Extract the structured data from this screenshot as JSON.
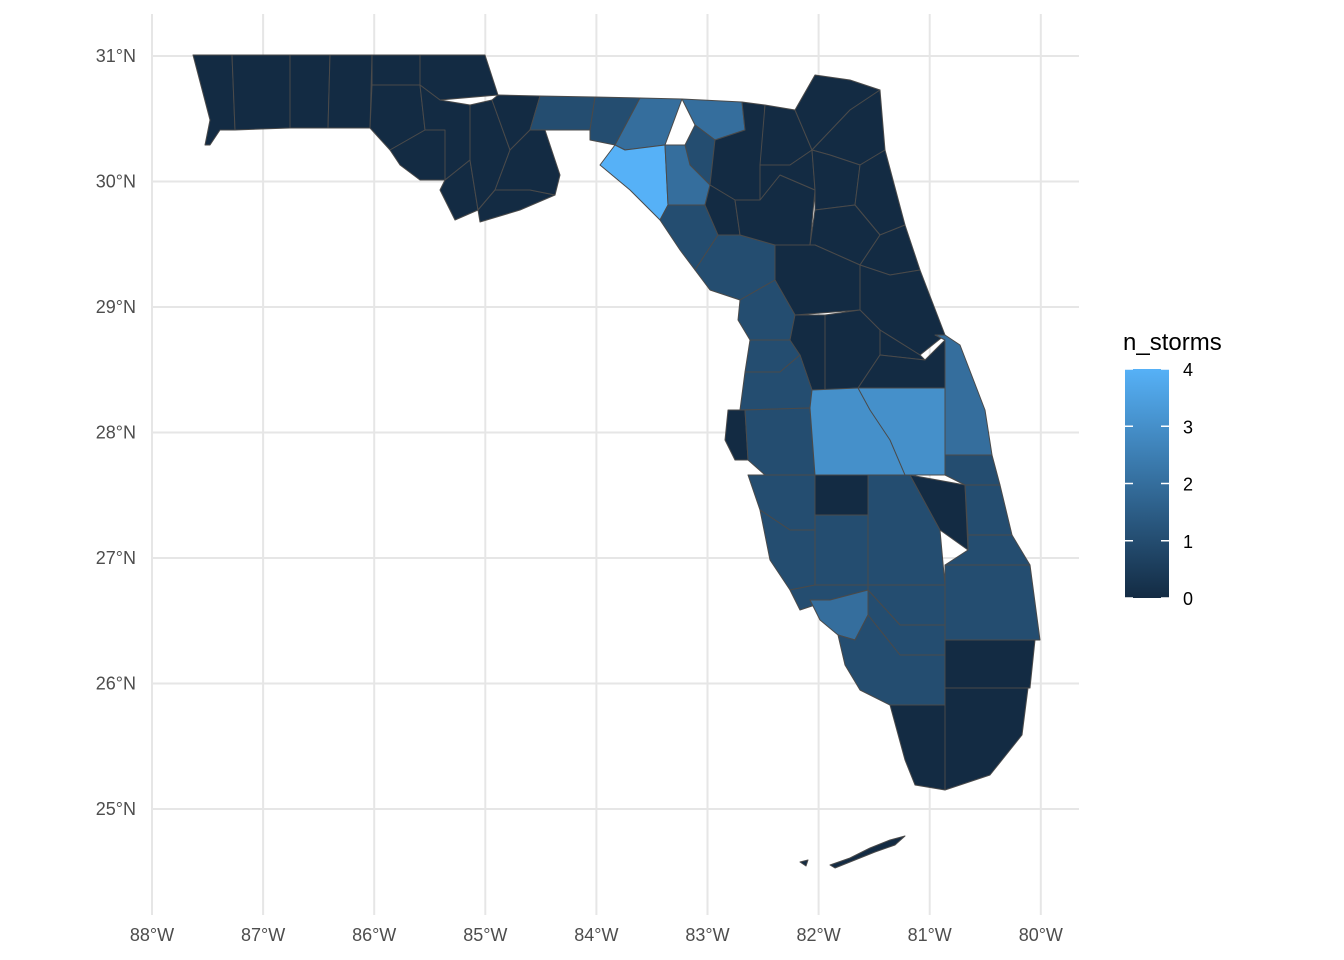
{
  "chart_data": {
    "type": "choropleth",
    "region": "Florida counties",
    "x_ticks": [
      {
        "value": -88,
        "label": "88°W"
      },
      {
        "value": -87,
        "label": "87°W"
      },
      {
        "value": -86,
        "label": "86°W"
      },
      {
        "value": -85,
        "label": "85°W"
      },
      {
        "value": -84,
        "label": "84°W"
      },
      {
        "value": -83,
        "label": "83°W"
      },
      {
        "value": -82,
        "label": "82°W"
      },
      {
        "value": -81,
        "label": "81°W"
      },
      {
        "value": -80,
        "label": "80°W"
      }
    ],
    "y_ticks": [
      {
        "value": 31,
        "label": "31°N"
      },
      {
        "value": 30,
        "label": "30°N"
      },
      {
        "value": 29,
        "label": "29°N"
      },
      {
        "value": 28,
        "label": "28°N"
      },
      {
        "value": 27,
        "label": "27°N"
      },
      {
        "value": 26,
        "label": "26°N"
      },
      {
        "value": 25,
        "label": "25°N"
      }
    ],
    "xlim": [
      -88.1,
      -79.6
    ],
    "ylim": [
      24.4,
      31.2
    ],
    "grid": true,
    "legend": {
      "title": "n_storms",
      "placement": "right",
      "min": 0,
      "max": 4,
      "ticks": [
        {
          "value": 4,
          "label": "4"
        },
        {
          "value": 3,
          "label": "3"
        },
        {
          "value": 2,
          "label": "2"
        },
        {
          "value": 1,
          "label": "1"
        },
        {
          "value": 0,
          "label": "0"
        }
      ],
      "color_low": "#132B43",
      "color_high": "#56B1F7"
    }
  }
}
